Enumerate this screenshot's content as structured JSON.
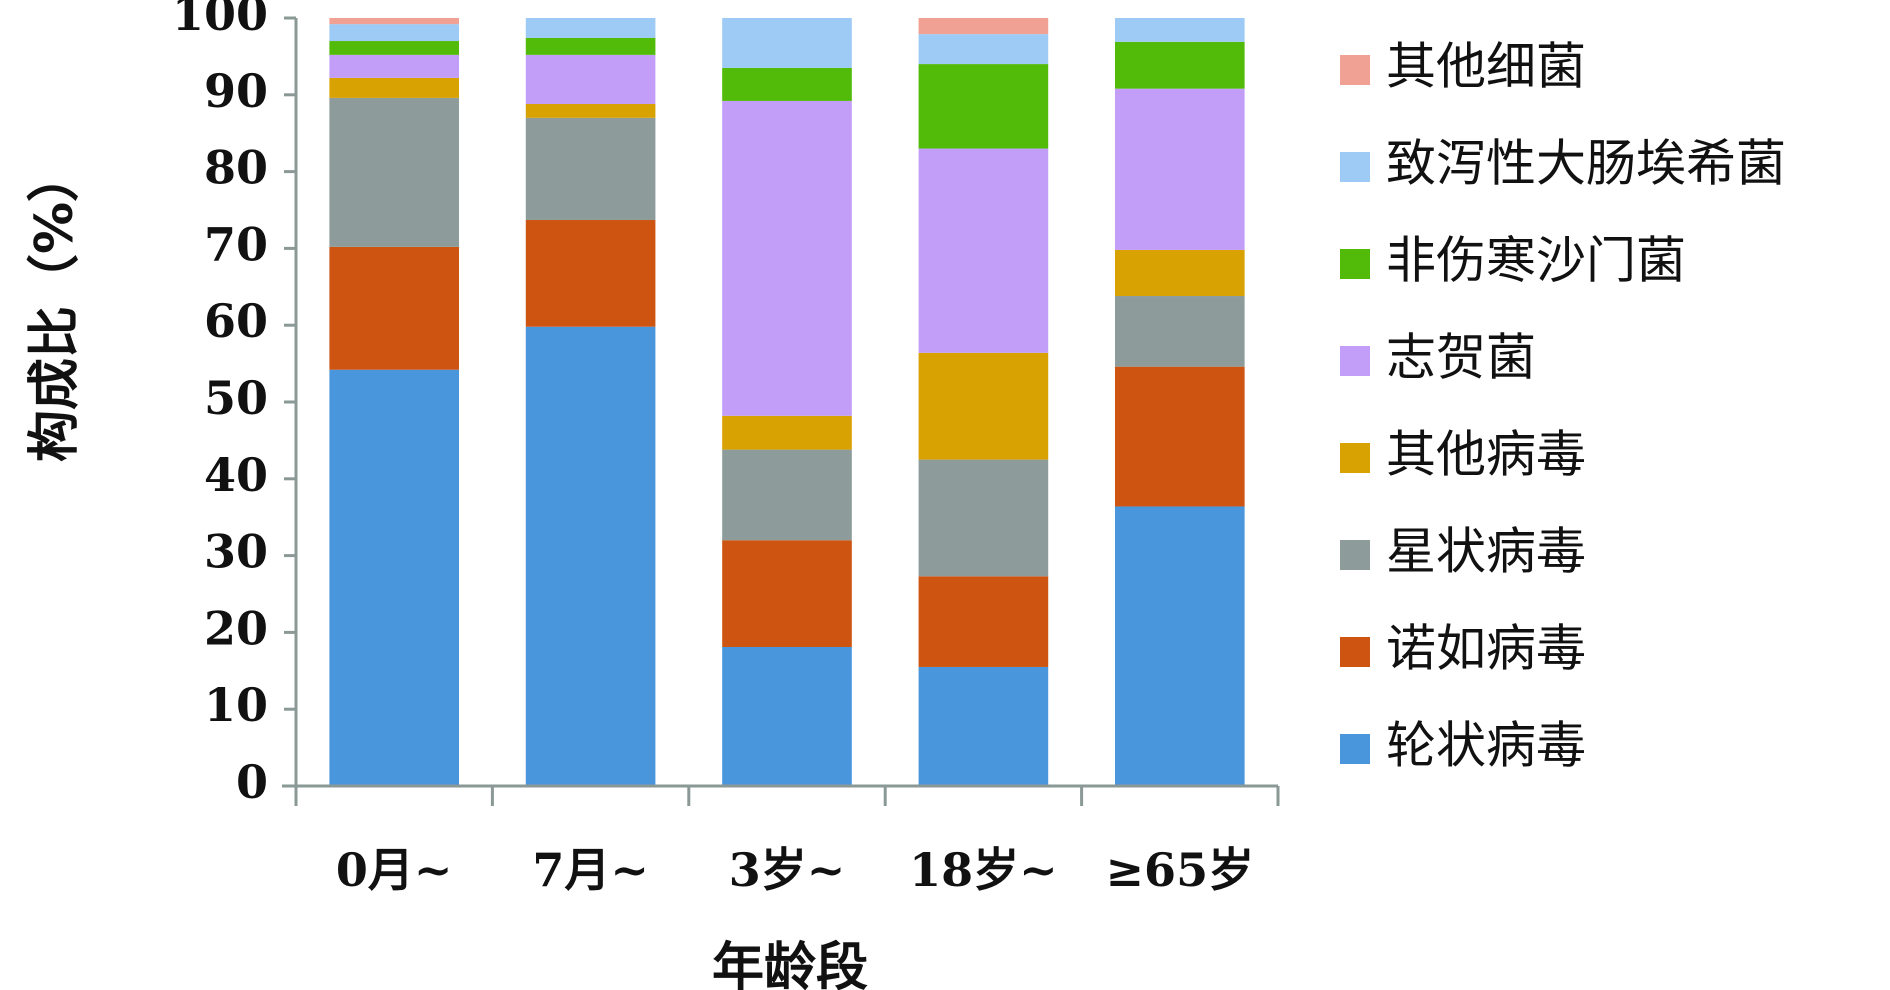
{
  "chart_data": {
    "type": "bar",
    "stacked": true,
    "categories": [
      "0月~",
      "7月~",
      "3岁~",
      "18岁~",
      "≥65岁"
    ],
    "xlabel": "年龄段",
    "ylabel": "构成比（%）",
    "ylim": [
      0,
      100
    ],
    "yticks": [
      "0",
      "10",
      "20",
      "30",
      "40",
      "50",
      "60",
      "70",
      "80",
      "90",
      "100"
    ],
    "legend_position": "right",
    "series": [
      {
        "name": "轮状病毒",
        "color": "#4A96DD",
        "values": [
          54.2,
          59.8,
          18.1,
          15.5,
          36.4
        ]
      },
      {
        "name": "诺如病毒",
        "color": "#CD5411",
        "values": [
          16.0,
          13.9,
          13.9,
          11.8,
          18.2
        ]
      },
      {
        "name": "星状病毒",
        "color": "#8D9C9A",
        "values": [
          19.4,
          13.3,
          11.8,
          15.2,
          9.2
        ]
      },
      {
        "name": "其他病毒",
        "color": "#D8A203",
        "values": [
          2.6,
          1.8,
          4.4,
          13.9,
          6.0
        ]
      },
      {
        "name": "志贺菌",
        "color": "#C29EF9",
        "values": [
          3.0,
          6.4,
          41.0,
          26.6,
          21.0
        ]
      },
      {
        "name": "非伤寒沙门菌",
        "color": "#52BA08",
        "values": [
          1.8,
          2.2,
          4.3,
          11.0,
          6.1
        ]
      },
      {
        "name": "致泻性大肠埃希菌",
        "color": "#9DCBF5",
        "values": [
          2.2,
          2.6,
          6.5,
          3.9,
          3.1
        ]
      },
      {
        "name": "其他细菌",
        "color": "#F1A193",
        "values": [
          0.8,
          0.0,
          0.0,
          2.1,
          0.0
        ]
      }
    ]
  }
}
